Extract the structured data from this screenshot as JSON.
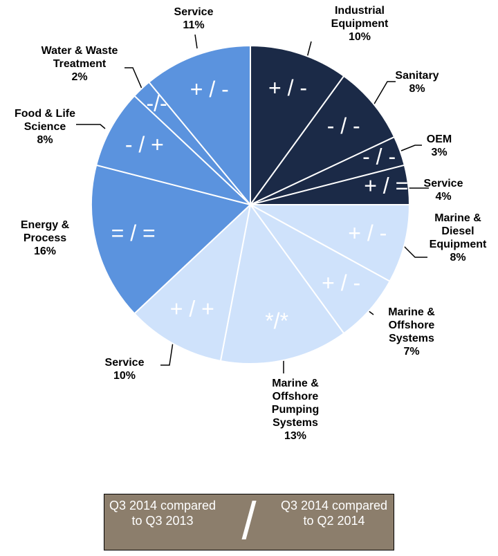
{
  "chart_data": {
    "type": "pie",
    "categories": [
      "Industrial Equipment",
      "Sanitary",
      "OEM",
      "Service",
      "Marine & Diesel Equipment",
      "Marine & Offshore Systems",
      "Marine & Offshore Pumping Systems",
      "Service",
      "Energy & Process",
      "Food & Life Science",
      "Water & Waste Treatment",
      "Service"
    ],
    "values": [
      10,
      8,
      3,
      4,
      8,
      7,
      13,
      10,
      16,
      8,
      2,
      11
    ],
    "value_labels": [
      "10%",
      "8%",
      "3%",
      "4%",
      "8%",
      "7%",
      "13%",
      "10%",
      "16%",
      "8%",
      "2%",
      "11%"
    ],
    "annotations": [
      "+ / -",
      "- / -",
      "- / -",
      "+ / =",
      "+ / -",
      "+ / -",
      "*/*",
      "+ / +",
      "= / =",
      "- / +",
      "-/-",
      "+ / -"
    ],
    "colors": [
      "#1b2a47",
      "#1b2a47",
      "#1b2a47",
      "#1b2a47",
      "#cfe2fb",
      "#cfe2fb",
      "#cfe2fb",
      "#cfe2fb",
      "#5b93de",
      "#5b93de",
      "#5b93de",
      "#5b93de"
    ],
    "legend": {
      "left": "Q3 2014 compared to Q3 2013",
      "separator": "/",
      "right": "Q3 2014 compared to Q2 2014"
    }
  }
}
